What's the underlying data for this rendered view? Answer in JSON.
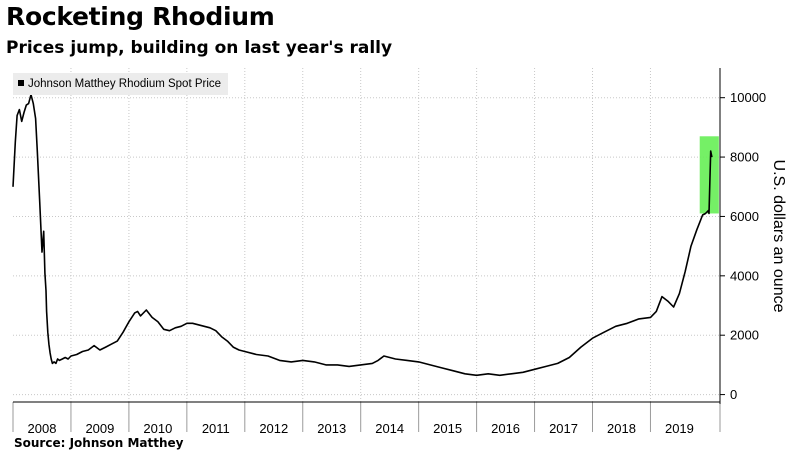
{
  "title": "Rocketing Rhodium",
  "subtitle": "Prices jump, building on last year's rally",
  "source": "Source: Johnson Matthey",
  "chart_data": {
    "type": "line",
    "legend": "Johnson Matthey Rhodium Spot Price",
    "ylabel": "U.S. dollars an ounce",
    "ylim": [
      -250,
      11000
    ],
    "y_ticks": [
      0,
      2000,
      4000,
      6000,
      8000,
      10000
    ],
    "y_tick_labels": [
      "0",
      "2000",
      "4000",
      "6000",
      "8000",
      "10000"
    ],
    "xlim": [
      2008.0,
      2020.2
    ],
    "x_ticks": [
      2008,
      2009,
      2010,
      2011,
      2012,
      2013,
      2014,
      2015,
      2016,
      2017,
      2018,
      2019
    ],
    "x_tick_labels": [
      "2008",
      "2009",
      "2010",
      "2011",
      "2012",
      "2013",
      "2014",
      "2015",
      "2016",
      "2017",
      "2018",
      "2019"
    ],
    "grid": true,
    "legend_position": "top-left",
    "highlight": {
      "x": [
        2019.85,
        2020.18
      ],
      "y": [
        6100,
        8700
      ],
      "color": "#66ee55"
    },
    "colors": {
      "line": "#000000",
      "grid": "#c8c8c8",
      "highlight": "#66ee55",
      "legend_bg": "#ececec"
    },
    "series": [
      {
        "name": "Johnson Matthey Rhodium Spot Price",
        "x": [
          2008.0,
          2008.04,
          2008.07,
          2008.11,
          2008.15,
          2008.19,
          2008.23,
          2008.27,
          2008.31,
          2008.35,
          2008.39,
          2008.42,
          2008.46,
          2008.5,
          2008.53,
          2008.55,
          2008.57,
          2008.58,
          2008.6,
          2008.62,
          2008.64,
          2008.66,
          2008.68,
          2008.71,
          2008.74,
          2008.77,
          2008.8,
          2008.85,
          2008.9,
          2008.95,
          2009.0,
          2009.1,
          2009.2,
          2009.3,
          2009.4,
          2009.5,
          2009.6,
          2009.7,
          2009.8,
          2009.9,
          2010.0,
          2010.1,
          2010.15,
          2010.2,
          2010.3,
          2010.4,
          2010.5,
          2010.6,
          2010.7,
          2010.8,
          2010.9,
          2011.0,
          2011.1,
          2011.2,
          2011.3,
          2011.4,
          2011.5,
          2011.6,
          2011.7,
          2011.8,
          2011.9,
          2012.0,
          2012.2,
          2012.4,
          2012.6,
          2012.8,
          2013.0,
          2013.2,
          2013.4,
          2013.6,
          2013.8,
          2014.0,
          2014.2,
          2014.3,
          2014.4,
          2014.5,
          2014.6,
          2014.8,
          2015.0,
          2015.2,
          2015.4,
          2015.6,
          2015.8,
          2016.0,
          2016.2,
          2016.4,
          2016.6,
          2016.8,
          2017.0,
          2017.2,
          2017.3,
          2017.4,
          2017.6,
          2017.8,
          2018.0,
          2018.2,
          2018.4,
          2018.6,
          2018.8,
          2019.0,
          2019.1,
          2019.2,
          2019.3,
          2019.4,
          2019.5,
          2019.6,
          2019.7,
          2019.8,
          2019.85,
          2019.9,
          2019.95,
          2020.0,
          2020.01,
          2020.04,
          2020.06
        ],
        "y": [
          7000,
          8500,
          9400,
          9600,
          9200,
          9500,
          9750,
          9800,
          10100,
          9800,
          9300,
          8200,
          6500,
          4800,
          5500,
          4100,
          3500,
          2800,
          2100,
          1700,
          1400,
          1200,
          1050,
          1100,
          1050,
          1200,
          1150,
          1200,
          1250,
          1200,
          1300,
          1350,
          1450,
          1500,
          1650,
          1500,
          1600,
          1700,
          1800,
          2100,
          2450,
          2750,
          2800,
          2650,
          2850,
          2600,
          2450,
          2200,
          2150,
          2250,
          2300,
          2400,
          2400,
          2350,
          2300,
          2250,
          2150,
          1950,
          1800,
          1600,
          1500,
          1450,
          1350,
          1300,
          1150,
          1100,
          1150,
          1100,
          1000,
          1000,
          950,
          1000,
          1050,
          1150,
          1300,
          1250,
          1200,
          1150,
          1100,
          1000,
          900,
          800,
          700,
          650,
          700,
          650,
          700,
          750,
          850,
          950,
          1000,
          1050,
          1250,
          1600,
          1900,
          2100,
          2300,
          2400,
          2550,
          2600,
          2800,
          3300,
          3150,
          2950,
          3400,
          4150,
          5000,
          5550,
          5800,
          6050,
          6100,
          6200,
          6100,
          8200,
          8000
        ]
      }
    ]
  }
}
